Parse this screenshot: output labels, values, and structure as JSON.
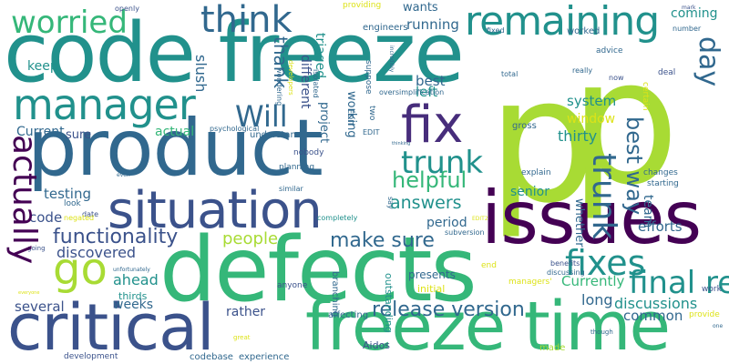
{
  "palette": {
    "background": "#ffffff",
    "teal": "#21918c",
    "green": "#35b779",
    "lime": "#a8db34",
    "yellow": "#dde318",
    "blue": "#31688e",
    "indigo": "#3b528b",
    "purple": "#472d7b",
    "violet": "#440154",
    "cyan": "#1fa188"
  },
  "words": [
    "code freeze",
    "product",
    "defects",
    "p",
    "p",
    "issues",
    "critical",
    "freeze time",
    "situation",
    "fix",
    "manager",
    "remaining",
    "think",
    "worried",
    "go",
    "fixes",
    "trunk",
    "day",
    "final release",
    "actually",
    "functionality",
    "Will",
    "helpful",
    "answers",
    "seem",
    "release version",
    "best way",
    "make sure",
    "people",
    "discovered",
    "several",
    "ahead",
    "testing",
    "code",
    "Currently",
    "long",
    "thirty",
    "system",
    "period",
    "window",
    "senior",
    "efforts",
    "discussions",
    "common",
    "rather",
    "weeks",
    "thank",
    "slush",
    "different",
    "triaged",
    "project",
    "working",
    "left",
    "best",
    "Current",
    "keep",
    "sure",
    "actual",
    "coming",
    "running",
    "wants",
    "team",
    "whether",
    "presents",
    "Aidos",
    "thirds",
    "experience",
    "development",
    "codebase",
    "affecting",
    "outstanding",
    "initial",
    "made",
    "great",
    "though",
    "provide",
    "work",
    "one",
    "managers'",
    "benefits",
    "end",
    "discussing",
    "subversion",
    "branching",
    "anyone",
    "nobody",
    "understand",
    "planning",
    "look",
    "date",
    "negated",
    "similar",
    "completely",
    "EDIT2",
    "even",
    "going",
    "unfortunately",
    "everyone",
    "explain",
    "starting",
    "changes",
    "gross",
    "certain",
    "now",
    "deal",
    "really",
    "total",
    "advice",
    "mark",
    "fixed",
    "worked",
    "number",
    "engineers",
    "providing",
    "openly",
    "incredibly",
    "suppose",
    "two",
    "EDIT",
    "thinking",
    "oversimplification",
    "psychological",
    "wondering",
    "developers",
    "isolated",
    "say",
    "actually"
  ]
}
